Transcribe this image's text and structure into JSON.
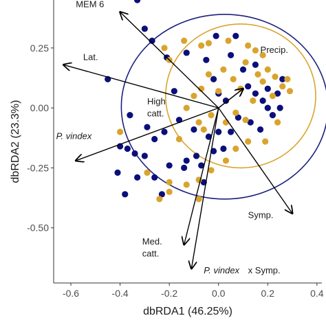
{
  "colors": {
    "navy": "#0b0f7a",
    "gold": "#d9a42e",
    "ellipse_navy": "#1a1f7e",
    "ellipse_gold": "#d9a42e",
    "arrow": "#000000",
    "axis": "#333333",
    "tick_text": "#4d4d4d"
  },
  "chart_data": {
    "type": "scatter",
    "xlabel": "dbRDA1 (46.25%)",
    "ylabel": "dbRDA2 (23.3%)",
    "xlim": [
      -0.67,
      0.42
    ],
    "ylim": [
      -0.73,
      0.45
    ],
    "x_ticks": [
      -0.6,
      -0.4,
      -0.2,
      0.0,
      0.2,
      0.4
    ],
    "x_tick_labels": [
      "-0.6",
      "-0.4",
      "-0.2",
      "0.0",
      "0.2",
      "0.4"
    ],
    "y_ticks": [
      0.25,
      0.0,
      -0.25,
      -0.5
    ],
    "y_tick_labels": [
      "0.25",
      "0.00",
      "-0.25",
      "-0.50"
    ],
    "grid": false,
    "arrows": [
      {
        "label": "MEM 6",
        "italic": false,
        "x": -0.4,
        "y": 0.4
      },
      {
        "label": "Lat.",
        "italic": false,
        "x": -0.63,
        "y": 0.18
      },
      {
        "label": "High cattl.",
        "display": [
          "High",
          "catt."
        ],
        "italic": false,
        "x": 0.1,
        "y": 0.08
      },
      {
        "label": "Precip.",
        "italic": false,
        "x": 0.1,
        "y": 0.08
      },
      {
        "label": "P. vindex",
        "italic": true,
        "x": -0.58,
        "y": -0.22
      },
      {
        "label": "Symp.",
        "italic": false,
        "x": 0.3,
        "y": -0.44
      },
      {
        "label": "Med. catt.",
        "italic": false,
        "x": -0.14,
        "y": -0.57
      },
      {
        "label": "P. vindex x Symp.",
        "italic": false,
        "x": -0.11,
        "y": -0.67
      }
    ],
    "arrow_labels": [
      {
        "text": "MEM 6",
        "italic": false,
        "x": -0.58,
        "y": 0.42
      },
      {
        "text": "Lat.",
        "italic": false,
        "x": -0.55,
        "y": 0.2
      },
      {
        "text": "Precip.",
        "italic": false,
        "x": 0.17,
        "y": 0.23
      },
      {
        "text": "High",
        "italic": false,
        "x": -0.29,
        "y": 0.015
      },
      {
        "text": "catt.",
        "italic": false,
        "x": -0.29,
        "y": -0.035
      },
      {
        "text": "P. vindex",
        "italic": true,
        "x": -0.66,
        "y": -0.13
      },
      {
        "text": "Symp.",
        "italic": false,
        "x": 0.12,
        "y": -0.46
      },
      {
        "text": "Med.",
        "italic": false,
        "x": -0.31,
        "y": -0.57
      },
      {
        "text": "catt.",
        "italic": false,
        "x": -0.31,
        "y": -0.62
      },
      {
        "text": "P. vindex",
        "italic": true,
        "x": -0.06,
        "y": -0.69
      },
      {
        "text": "x Symp.",
        "italic": false,
        "x": 0.12,
        "y": -0.69
      }
    ],
    "ellipses": [
      {
        "group": "navy",
        "cx": 0.025,
        "cy": 0.005,
        "rx": 0.42,
        "ry": 0.385,
        "rotate": 0
      },
      {
        "group": "gold",
        "cx": 0.09,
        "cy": 0.05,
        "rx": 0.305,
        "ry": 0.3,
        "rotate": 0
      }
    ],
    "series": [
      {
        "group": "navy",
        "points": [
          [
            -0.33,
            0.45
          ],
          [
            -0.3,
            0.33
          ],
          [
            -0.27,
            0.28
          ],
          [
            -0.21,
            0.21
          ],
          [
            -0.18,
            0.07
          ],
          [
            -0.13,
            0.23
          ],
          [
            -0.45,
            0.12
          ],
          [
            -0.36,
            -0.03
          ],
          [
            -0.29,
            -0.08
          ],
          [
            -0.26,
            -0.13
          ],
          [
            -0.22,
            -0.1
          ],
          [
            -0.16,
            -0.05
          ],
          [
            -0.4,
            -0.16
          ],
          [
            -0.37,
            -0.17
          ],
          [
            -0.34,
            -0.19
          ],
          [
            -0.3,
            -0.2
          ],
          [
            -0.41,
            -0.27
          ],
          [
            -0.33,
            -0.29
          ],
          [
            -0.26,
            -0.29
          ],
          [
            -0.2,
            -0.24
          ],
          [
            -0.13,
            -0.22
          ],
          [
            -0.09,
            -0.2
          ],
          [
            -0.07,
            -0.24
          ],
          [
            -0.06,
            -0.31
          ],
          [
            -0.38,
            -0.36
          ],
          [
            -0.23,
            -0.36
          ],
          [
            -0.14,
            -0.25
          ],
          [
            -0.1,
            -0.09
          ],
          [
            -0.04,
            -0.12
          ],
          [
            -0.02,
            -0.18
          ],
          [
            0.0,
            -0.1
          ],
          [
            0.02,
            -0.17
          ],
          [
            -0.05,
            0.2
          ],
          [
            -0.02,
            0.12
          ],
          [
            0.0,
            0.06
          ],
          [
            0.03,
            0.03
          ],
          [
            -0.01,
            0.3
          ],
          [
            0.07,
            0.3
          ],
          [
            0.05,
            0.22
          ],
          [
            0.1,
            0.16
          ],
          [
            0.12,
            0.09
          ],
          [
            0.15,
            0.06
          ],
          [
            0.18,
            0.03
          ],
          [
            0.2,
            0.0
          ],
          [
            0.22,
            -0.03
          ],
          [
            0.24,
            0.06
          ],
          [
            0.26,
            0.12
          ],
          [
            0.15,
            0.18
          ],
          [
            0.13,
            -0.06
          ],
          [
            0.08,
            -0.04
          ],
          [
            0.05,
            -0.1
          ],
          [
            0.17,
            -0.09
          ],
          [
            0.2,
            0.08
          ],
          [
            0.25,
            0.0
          ]
        ]
      },
      {
        "group": "gold",
        "points": [
          [
            -0.22,
            0.25
          ],
          [
            -0.2,
            0.2
          ],
          [
            -0.14,
            0.28
          ],
          [
            -0.07,
            0.26
          ],
          [
            -0.04,
            0.27
          ],
          [
            0.04,
            0.28
          ],
          [
            0.12,
            0.26
          ],
          [
            0.15,
            0.24
          ],
          [
            0.18,
            0.22
          ],
          [
            0.11,
            0.19
          ],
          [
            0.16,
            0.14
          ],
          [
            0.2,
            0.16
          ],
          [
            0.23,
            0.13
          ],
          [
            0.26,
            0.09
          ],
          [
            0.29,
            0.07
          ],
          [
            0.18,
            0.11
          ],
          [
            0.09,
            0.08
          ],
          [
            0.06,
            0.12
          ],
          [
            0.02,
            0.16
          ],
          [
            -0.04,
            0.14
          ],
          [
            -0.07,
            0.08
          ],
          [
            -0.1,
            0.05
          ],
          [
            -0.13,
            0.0
          ],
          [
            -0.08,
            -0.06
          ],
          [
            -0.03,
            -0.03
          ],
          [
            0.03,
            -0.06
          ],
          [
            0.07,
            -0.02
          ],
          [
            0.11,
            -0.05
          ],
          [
            0.14,
            0.03
          ],
          [
            0.22,
            0.05
          ],
          [
            0.24,
            -0.06
          ],
          [
            0.19,
            -0.14
          ],
          [
            0.12,
            -0.14
          ],
          [
            0.07,
            -0.17
          ],
          [
            0.03,
            -0.22
          ],
          [
            -0.03,
            -0.26
          ],
          [
            -0.08,
            -0.3
          ],
          [
            -0.13,
            -0.32
          ],
          [
            -0.2,
            -0.35
          ],
          [
            -0.24,
            -0.38
          ],
          [
            -0.29,
            -0.27
          ],
          [
            -0.4,
            -0.1
          ],
          [
            -0.08,
            -0.38
          ],
          [
            -0.2,
            -0.31
          ],
          [
            -0.16,
            -0.13
          ],
          [
            -0.06,
            -0.09
          ],
          [
            0.0,
            0.07
          ],
          [
            0.28,
            0.12
          ]
        ]
      }
    ]
  }
}
